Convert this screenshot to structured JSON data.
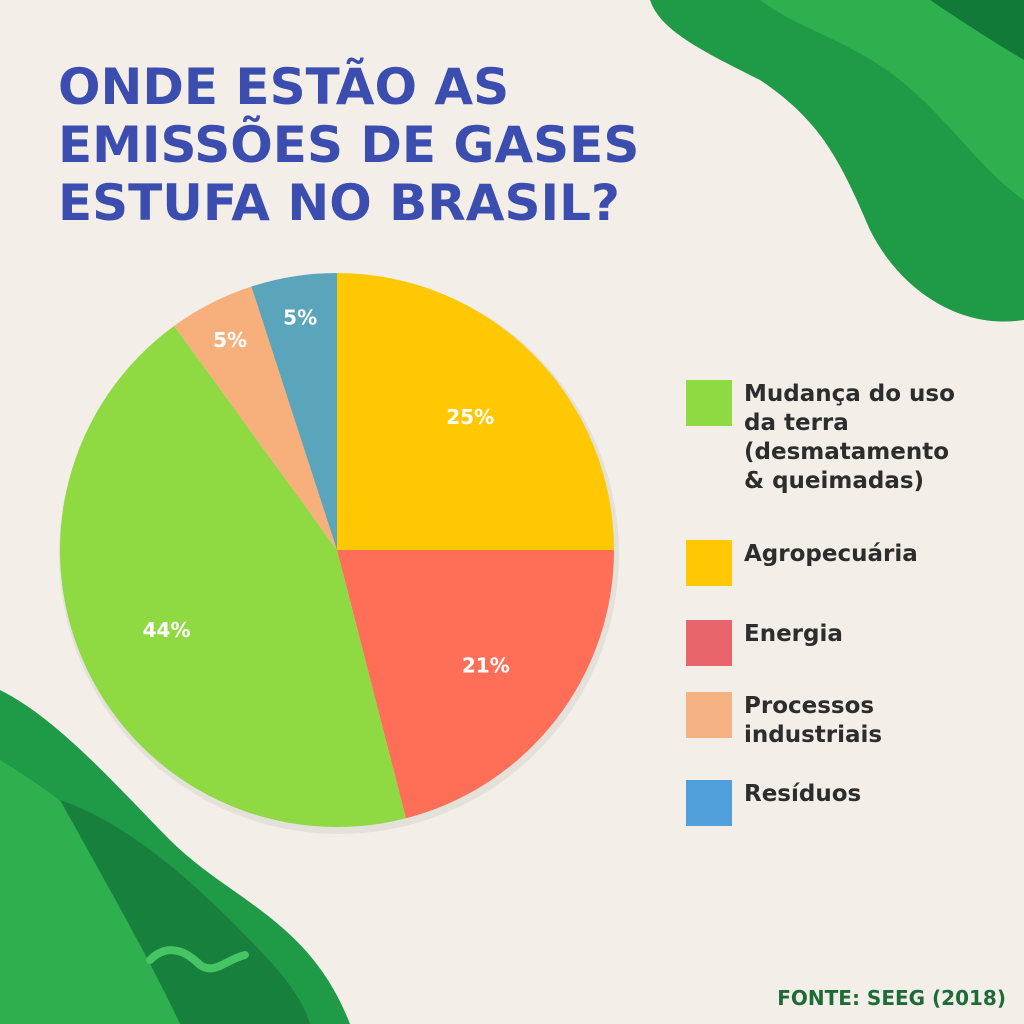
{
  "title_lines": [
    "ONDE ESTÃO AS",
    "EMISSÕES DE GASES",
    "ESTUFA NO BRASIL?"
  ],
  "source": "FONTE:  SEEG (2018)",
  "chart_data": {
    "type": "pie",
    "title": "ONDE ESTÃO AS EMISSÕES DE GASES ESTUFA NO BRASIL?",
    "start": "12 o'clock, clockwise",
    "slices": [
      {
        "label": "Agropecuária",
        "value": 25,
        "display": "25%",
        "color": "#FFC803",
        "legend_color": "#FFC803"
      },
      {
        "label": "Energia",
        "value": 21,
        "display": "21%",
        "color": "#FF6F58",
        "legend_color": "#E8656B"
      },
      {
        "label": "Mudança do uso da terra (desmatamento & queimadas)",
        "value": 44,
        "display": "44%",
        "color": "#8FD943",
        "legend_color": "#8FD943"
      },
      {
        "label": "Processos industriais",
        "value": 5,
        "display": "5%",
        "color": "#F7B07C",
        "legend_color": "#F5B384"
      },
      {
        "label": "Resíduos",
        "value": 5,
        "display": "5%",
        "color": "#5AA5BC",
        "legend_color": "#519FDB"
      }
    ],
    "legend": [
      {
        "lines": [
          "Mudança do uso",
          "da terra",
          "(desmatamento",
          "& queimadas)"
        ],
        "slice": 2
      },
      {
        "lines": [
          "Agropecuária"
        ],
        "slice": 0
      },
      {
        "lines": [
          "Energia"
        ],
        "slice": 1
      },
      {
        "lines": [
          "Processos",
          "industriais"
        ],
        "slice": 3
      },
      {
        "lines": [
          "Resíduos"
        ],
        "slice": 4
      }
    ],
    "legend_position": "right"
  }
}
